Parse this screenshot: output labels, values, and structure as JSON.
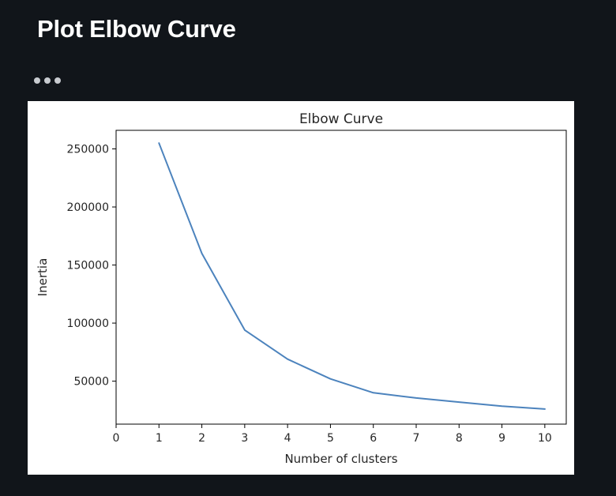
{
  "page": {
    "title": "Plot Elbow Curve",
    "more_icon": "more-horizontal-icon"
  },
  "chart_data": {
    "type": "line",
    "title": "Elbow Curve",
    "xlabel": "Number of clusters",
    "ylabel": "Inertia",
    "x": [
      1,
      2,
      3,
      4,
      5,
      6,
      7,
      8,
      9,
      10
    ],
    "series": [
      {
        "values": [
          255000,
          160000,
          94000,
          69000,
          52000,
          40000,
          35500,
          32000,
          28500,
          26000
        ],
        "color": "#4c83bd"
      }
    ],
    "xlim": [
      0,
      10.5
    ],
    "ylim": [
      13000,
      266000
    ],
    "xticks": [
      0,
      1,
      2,
      3,
      4,
      5,
      6,
      7,
      8,
      9,
      10
    ],
    "yticks": [
      50000,
      100000,
      150000,
      200000,
      250000
    ],
    "grid": false
  }
}
